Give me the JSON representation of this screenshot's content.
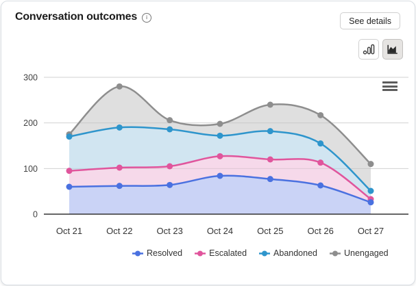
{
  "header": {
    "title": "Conversation outcomes",
    "see_details_label": "See details"
  },
  "icons": {
    "info_glyph": "i",
    "column_chart_icon": "column-chart",
    "area_chart_icon": "area-chart",
    "menu_icon": "hamburger-menu"
  },
  "toolbar": {
    "chart_type_options": [
      "column",
      "area"
    ],
    "selected_chart_type": "area"
  },
  "colors": {
    "resolved": "#4a71e0",
    "escalated": "#e0559c",
    "abandoned": "#2e95cc",
    "unengaged": "#8e8e8e",
    "grid": "#e6e6e6",
    "axis": "#333333"
  },
  "chart_data": {
    "type": "area",
    "title": "Conversation outcomes",
    "x": [
      "Oct 21",
      "Oct 22",
      "Oct 23",
      "Oct 24",
      "Oct 25",
      "Oct 26",
      "Oct 27"
    ],
    "series": [
      {
        "name": "Resolved",
        "color": "#4a71e0",
        "fill": "#c6d2f6",
        "values": [
          60,
          62,
          64,
          84,
          77,
          63,
          26
        ]
      },
      {
        "name": "Escalated",
        "color": "#e0559c",
        "fill": "#f8d8e9",
        "values": [
          95,
          102,
          105,
          127,
          120,
          113,
          33
        ]
      },
      {
        "name": "Abandoned",
        "color": "#2e95cc",
        "fill": "#cfe5f2",
        "values": [
          170,
          190,
          186,
          172,
          182,
          155,
          51
        ]
      },
      {
        "name": "Unengaged",
        "color": "#8e8e8e",
        "fill": "#dcdcdc",
        "values": [
          175,
          280,
          206,
          198,
          240,
          217,
          110
        ]
      }
    ],
    "ylim": [
      0,
      300
    ],
    "yticks": [
      0,
      100,
      200,
      300
    ],
    "grid": true,
    "legend_position": "bottom"
  }
}
